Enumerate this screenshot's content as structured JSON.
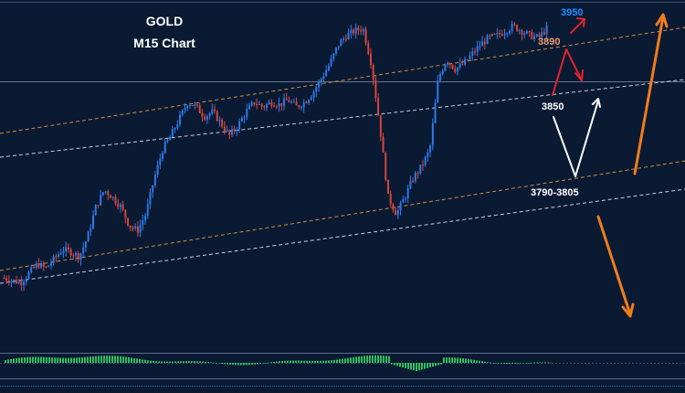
{
  "chart_data": {
    "type": "candlestick",
    "title": "GOLD",
    "subtitle": "M15 Chart",
    "levels": [
      {
        "label": "3950",
        "value": 3950,
        "color": "#1e8fff"
      },
      {
        "label": "3890",
        "value": 3890,
        "color": "#e89a6a"
      },
      {
        "label": "3850",
        "value": 3850,
        "color": "#ffffff"
      },
      {
        "label": "3790-3805",
        "value_low": 3790,
        "value_high": 3805,
        "color": "#ffffff"
      }
    ],
    "candle_path_approx": [
      3778,
      3777,
      3776,
      3780,
      3784,
      3782,
      3786,
      3790,
      3789,
      3787,
      3795,
      3808,
      3815,
      3812,
      3808,
      3800,
      3798,
      3805,
      3820,
      3832,
      3838,
      3845,
      3852,
      3850,
      3846,
      3848,
      3843,
      3838,
      3842,
      3848,
      3852,
      3850,
      3852,
      3851,
      3853,
      3850,
      3852,
      3856,
      3862,
      3868,
      3876,
      3880,
      3882,
      3883,
      3868,
      3842,
      3812,
      3805,
      3812,
      3820,
      3825,
      3832,
      3862,
      3870,
      3866,
      3868,
      3872,
      3876,
      3879,
      3880,
      3882,
      3884,
      3882,
      3880,
      3879,
      3883
    ],
    "grid": false,
    "legend": "none",
    "indicator": "histogram oscillator (green)"
  }
}
